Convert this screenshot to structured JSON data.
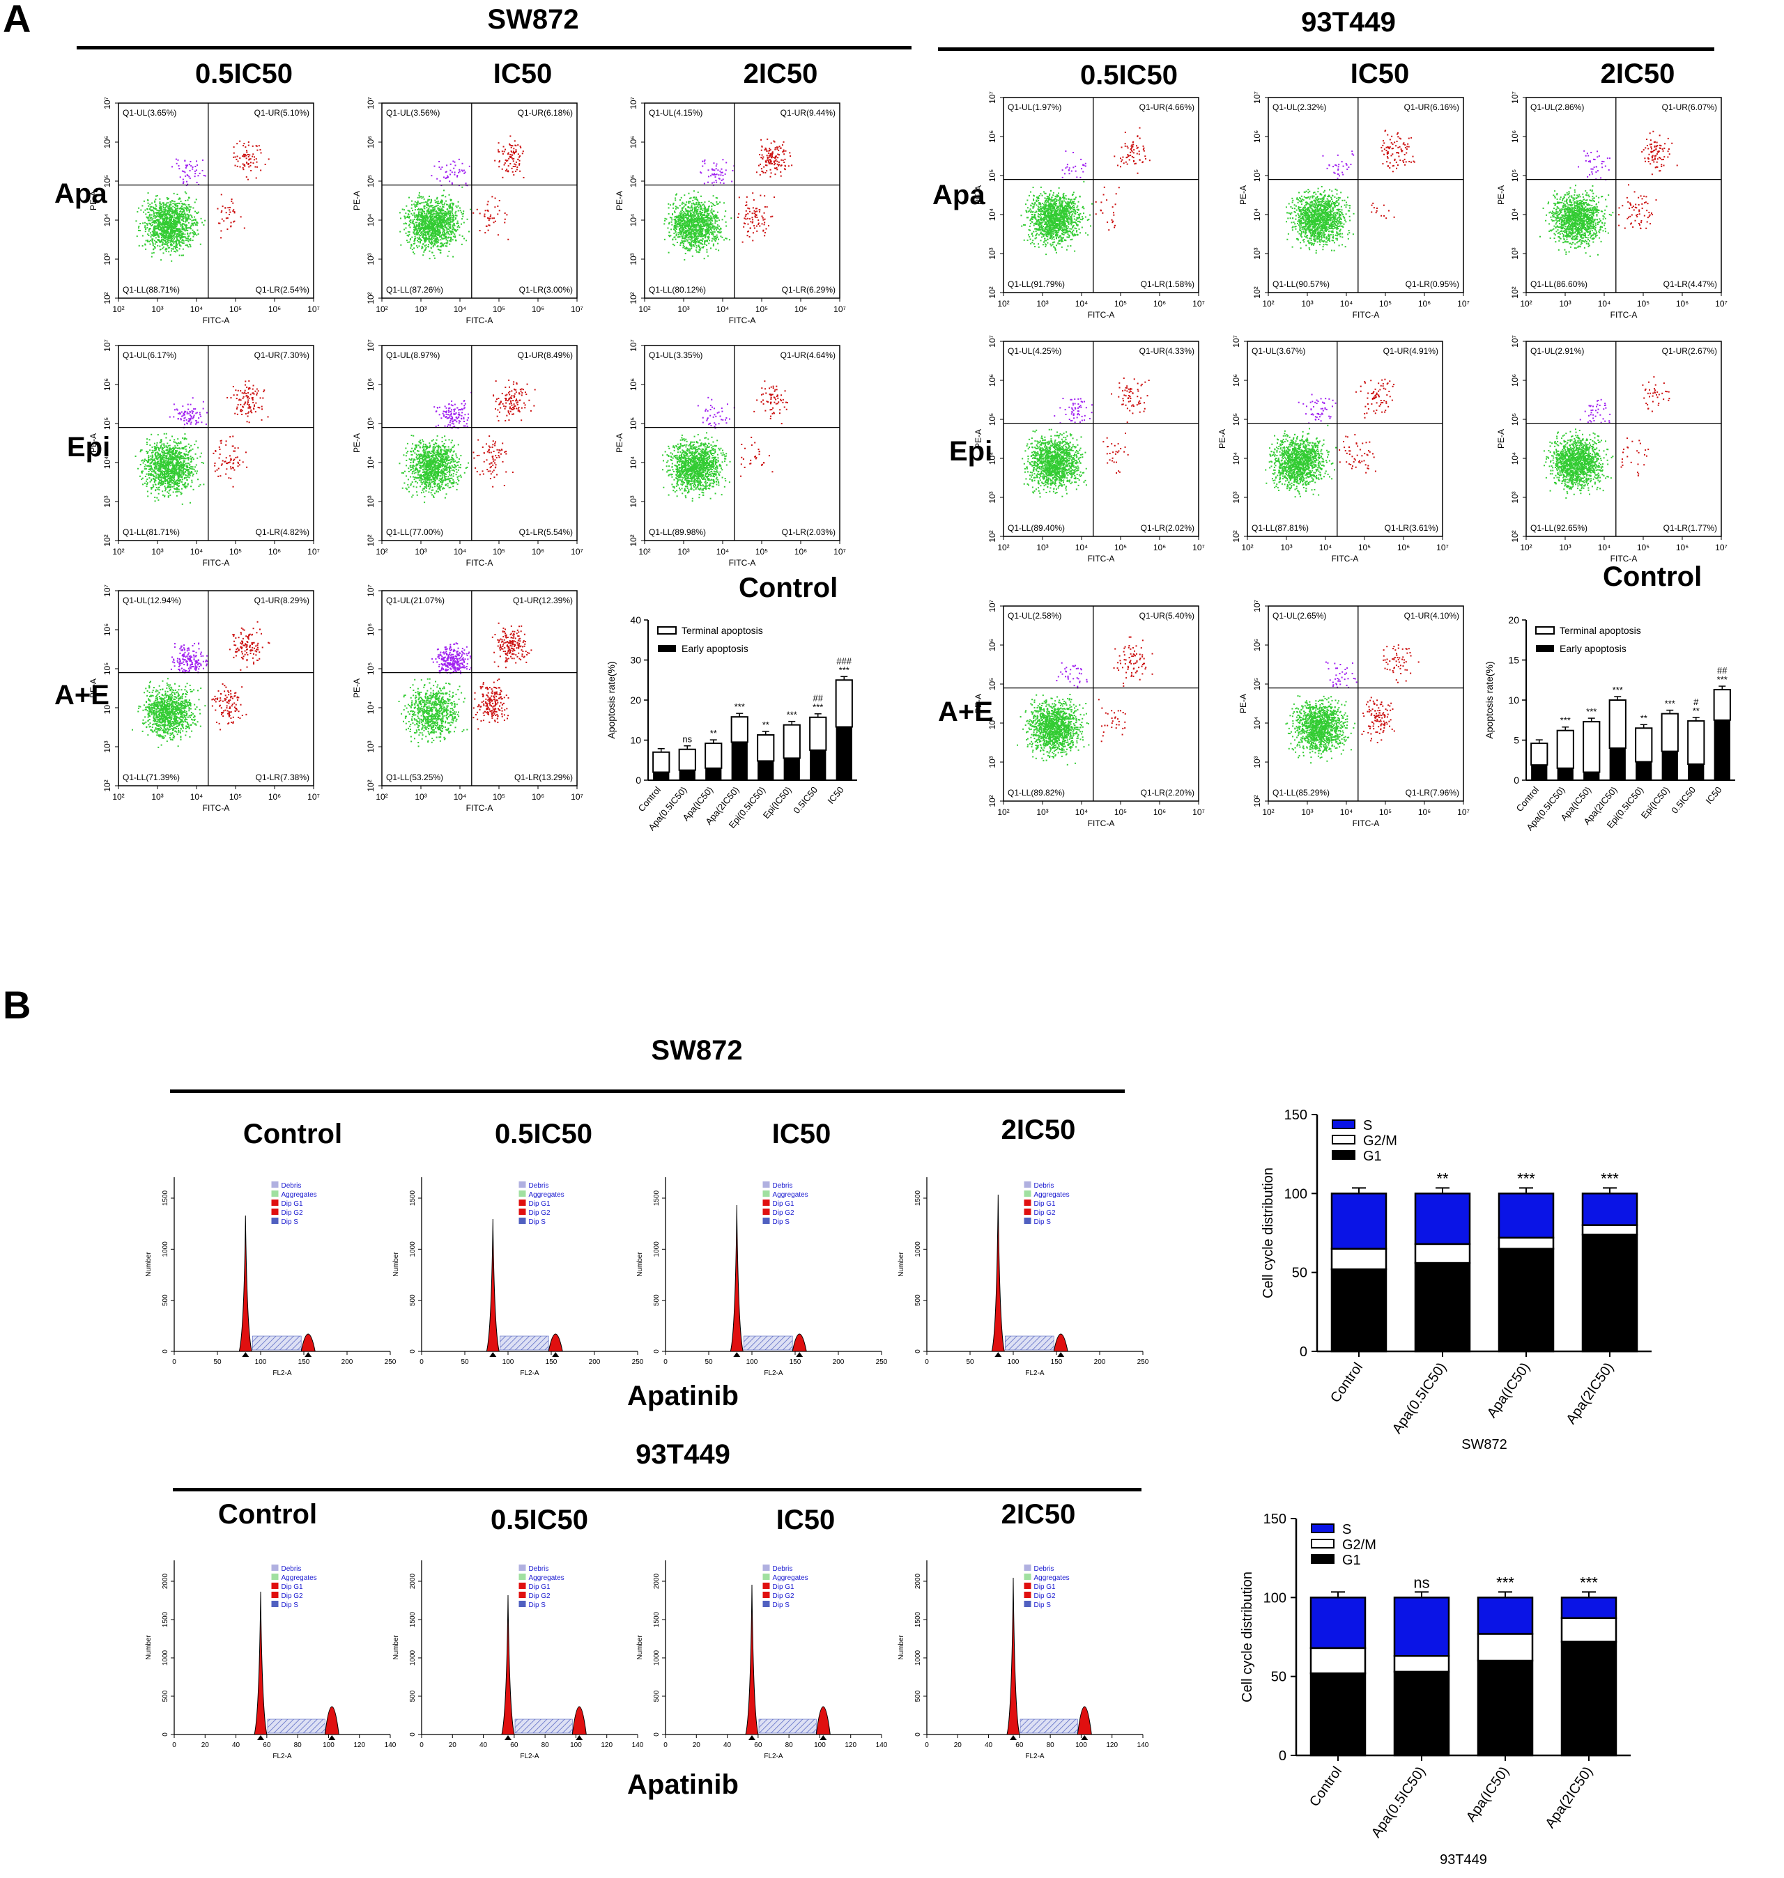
{
  "panel_a": {
    "letter": "A",
    "sw872": {
      "title": "SW872",
      "col_titles": [
        "0.5IC50",
        "IC50",
        "2IC50"
      ],
      "row_labels": [
        "Apa",
        "Epi",
        "A+E"
      ],
      "control_label": "Control",
      "plots": [
        [
          "Q1-UL(3.65%)",
          "Q1-UR(5.10%)",
          "Q1-LL(88.71%)",
          "Q1-LR(2.54%)"
        ],
        [
          "Q1-UL(3.56%)",
          "Q1-UR(6.18%)",
          "Q1-LL(87.26%)",
          "Q1-LR(3.00%)"
        ],
        [
          "Q1-UL(4.15%)",
          "Q1-UR(9.44%)",
          "Q1-LL(80.12%)",
          "Q1-LR(6.29%)"
        ],
        [
          "Q1-UL(6.17%)",
          "Q1-UR(7.30%)",
          "Q1-LL(81.71%)",
          "Q1-LR(4.82%)"
        ],
        [
          "Q1-UL(8.97%)",
          "Q1-UR(8.49%)",
          "Q1-LL(77.00%)",
          "Q1-LR(5.54%)"
        ],
        [
          "Q1-UL(3.35%)",
          "Q1-UR(4.64%)",
          "Q1-LL(89.98%)",
          "Q1-LR(2.03%)"
        ],
        [
          "Q1-UL(12.94%)",
          "Q1-UR(8.29%)",
          "Q1-LL(71.39%)",
          "Q1-LR(7.38%)"
        ],
        [
          "Q1-UL(21.07%)",
          "Q1-UR(12.39%)",
          "Q1-LL(53.25%)",
          "Q1-LR(13.29%)"
        ]
      ]
    },
    "t93": {
      "title": "93T449",
      "col_titles": [
        "0.5IC50",
        "IC50",
        "2IC50"
      ],
      "row_labels": [
        "Apa",
        "Epi",
        "A+E"
      ],
      "control_label": "Control",
      "plots": [
        [
          "Q1-UL(1.97%)",
          "Q1-UR(4.66%)",
          "Q1-LL(91.79%)",
          "Q1-LR(1.58%)"
        ],
        [
          "Q1-UL(2.32%)",
          "Q1-UR(6.16%)",
          "Q1-LL(90.57%)",
          "Q1-LR(0.95%)"
        ],
        [
          "Q1-UL(2.86%)",
          "Q1-UR(6.07%)",
          "Q1-LL(86.60%)",
          "Q1-LR(4.47%)"
        ],
        [
          "Q1-UL(4.25%)",
          "Q1-UR(4.33%)",
          "Q1-LL(89.40%)",
          "Q1-LR(2.02%)"
        ],
        [
          "Q1-UL(3.67%)",
          "Q1-UR(4.91%)",
          "Q1-LL(87.81%)",
          "Q1-LR(3.61%)"
        ],
        [
          "Q1-UL(2.91%)",
          "Q1-UR(2.67%)",
          "Q1-LL(92.65%)",
          "Q1-LR(1.77%)"
        ],
        [
          "Q1-UL(2.58%)",
          "Q1-UR(5.40%)",
          "Q1-LL(89.82%)",
          "Q1-LR(2.20%)"
        ],
        [
          "Q1-UL(2.65%)",
          "Q1-UR(4.10%)",
          "Q1-LL(85.29%)",
          "Q1-LR(7.96%)"
        ]
      ]
    },
    "axis": {
      "x_label": "FITC-A",
      "y_label": "PE-A",
      "x_ticks": [
        "10²",
        "10³",
        "10⁴",
        "10⁵",
        "10⁶",
        "10⁷"
      ],
      "y_ticks": [
        "10²",
        "10³",
        "10⁴",
        "10⁵",
        "10⁶",
        "10⁷"
      ]
    }
  },
  "panel_b": {
    "letter": "B",
    "sw872_title": "SW872",
    "t93_title": "93T449",
    "hist_titles": [
      "Control",
      "0.5IC50",
      "IC50",
      "2IC50"
    ],
    "drug_label": "Apatinib",
    "legend": [
      "Debris",
      "Aggregates",
      "Dip G1",
      "Dip G2",
      "Dip S"
    ],
    "hist_ylabel": "Number",
    "hist_xlabel": "FL2-A",
    "sw872_x_ticks": [
      "0",
      "50",
      "100",
      "150",
      "200",
      "250"
    ],
    "sw872_y_ticks": [
      "0",
      "500",
      "1000",
      "1500"
    ],
    "t93_x_ticks": [
      "0",
      "20",
      "40",
      "60",
      "80",
      "100",
      "120",
      "140"
    ],
    "t93_y_ticks": [
      "0",
      "500",
      "1000",
      "1500",
      "2000"
    ]
  },
  "chart_data": [
    {
      "type": "bar",
      "id": "apoptosis_sw872",
      "title": "",
      "xlabel": "",
      "ylabel": "Apoptosis rate(%)",
      "ylim": [
        0,
        40
      ],
      "yticks": [
        "0",
        "10",
        "20",
        "30",
        "40"
      ],
      "categories": [
        "Control",
        "Apa(0.5IC50)",
        "Apa(IC50)",
        "Apa(2IC50)",
        "Epi(0.5IC50)",
        "Epi(IC50)",
        "0.5IC50",
        "IC50"
      ],
      "series": [
        {
          "name": "Early apoptosis",
          "values": [
            2.0,
            2.5,
            3.0,
            9.5,
            4.8,
            5.5,
            7.5,
            13.3
          ]
        },
        {
          "name": "Terminal apoptosis",
          "values": [
            5.0,
            5.2,
            6.2,
            6.3,
            6.5,
            8.3,
            8.2,
            11.7
          ]
        }
      ],
      "annotations": [
        "",
        "ns",
        "**",
        "***",
        "**",
        "***",
        "##\n***",
        "###\n***"
      ],
      "legend": [
        "Terminal apoptosis",
        "Early apoptosis"
      ]
    },
    {
      "type": "bar",
      "id": "apoptosis_93t449",
      "title": "",
      "xlabel": "",
      "ylabel": "Apoptosis rate(%)",
      "ylim": [
        0,
        20
      ],
      "yticks": [
        "0",
        "5",
        "10",
        "15",
        "20"
      ],
      "categories": [
        "Control",
        "Apa(0.5IC50)",
        "Apa(IC50)",
        "Apa(2IC50)",
        "Epi(0.5IC50)",
        "Epi(IC50)",
        "0.5IC50",
        "IC50"
      ],
      "series": [
        {
          "name": "Early apoptosis",
          "values": [
            1.9,
            1.5,
            1.0,
            4.0,
            2.3,
            3.6,
            2.0,
            7.5
          ]
        },
        {
          "name": "Terminal apoptosis",
          "values": [
            2.7,
            4.7,
            6.3,
            6.0,
            4.2,
            4.7,
            5.4,
            3.8
          ]
        }
      ],
      "annotations": [
        "",
        "***",
        "***",
        "***",
        "**",
        "***",
        "#\n**",
        "##\n***"
      ],
      "legend": [
        "Terminal apoptosis",
        "Early apoptosis"
      ]
    },
    {
      "type": "bar",
      "id": "cellcycle_sw872",
      "title": "",
      "xlabel": "SW872",
      "ylabel": "Cell cycle distribution",
      "ylim": [
        0,
        150
      ],
      "yticks": [
        "0",
        "50",
        "100",
        "150"
      ],
      "categories": [
        "Control",
        "Apa(0.5IC50)",
        "Apa(IC50)",
        "Apa(2IC50)"
      ],
      "series": [
        {
          "name": "G1",
          "values": [
            52,
            56,
            65,
            74
          ]
        },
        {
          "name": "G2/M",
          "values": [
            13,
            12,
            7,
            6
          ]
        },
        {
          "name": "S",
          "values": [
            35,
            32,
            28,
            20
          ]
        }
      ],
      "annotations": [
        "",
        "**",
        "***",
        "***"
      ],
      "legend": [
        "S",
        "G2/M",
        "G1"
      ]
    },
    {
      "type": "bar",
      "id": "cellcycle_93t449",
      "title": "",
      "xlabel": "93T449",
      "ylabel": "Cell cycle distribution",
      "ylim": [
        0,
        150
      ],
      "yticks": [
        "0",
        "50",
        "100",
        "150"
      ],
      "categories": [
        "Control",
        "Apa(0.5IC50)",
        "Apa(IC50)",
        "Apa(2IC50)"
      ],
      "series": [
        {
          "name": "G1",
          "values": [
            52,
            53,
            60,
            72
          ]
        },
        {
          "name": "G2/M",
          "values": [
            16,
            10,
            17,
            15
          ]
        },
        {
          "name": "S",
          "values": [
            32,
            37,
            23,
            13
          ]
        }
      ],
      "annotations": [
        "",
        "ns",
        "***",
        "***"
      ],
      "legend": [
        "S",
        "G2/M",
        "G1"
      ]
    }
  ]
}
